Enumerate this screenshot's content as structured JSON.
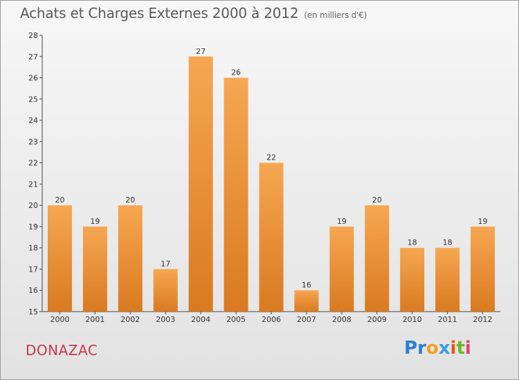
{
  "title": "Achats et Charges Externes 2000 à 2012",
  "subtitle": "(en milliers d'€)",
  "place": "DONAZAC",
  "logo": {
    "text": "Proxiti",
    "letters": [
      {
        "ch": "P",
        "color": "#2a7fd4"
      },
      {
        "ch": "r",
        "color": "#2a7fd4"
      },
      {
        "ch": "o",
        "color": "#f0a020"
      },
      {
        "ch": "x",
        "color": "#3aa0e0"
      },
      {
        "ch": "i",
        "color": "#e05a1a"
      },
      {
        "ch": "t",
        "color": "#6ab820"
      },
      {
        "ch": "i",
        "color": "#e04070"
      }
    ]
  },
  "colors": {
    "bar_top": "#f6a752",
    "bar_bottom": "#d97a20",
    "place": "#c43a4a"
  },
  "chart_data": {
    "type": "bar",
    "categories": [
      "2000",
      "2001",
      "2002",
      "2003",
      "2004",
      "2005",
      "2006",
      "2007",
      "2008",
      "2009",
      "2010",
      "2011",
      "2012"
    ],
    "values": [
      20,
      19,
      20,
      17,
      27,
      26,
      22,
      16,
      19,
      20,
      18,
      18,
      19
    ],
    "ylim": [
      15,
      28
    ],
    "yticks": [
      15,
      16,
      17,
      18,
      19,
      20,
      21,
      22,
      23,
      24,
      25,
      26,
      27,
      28
    ],
    "grid": false,
    "title": "Achats et Charges Externes 2000 à 2012",
    "xlabel": "",
    "ylabel": ""
  }
}
